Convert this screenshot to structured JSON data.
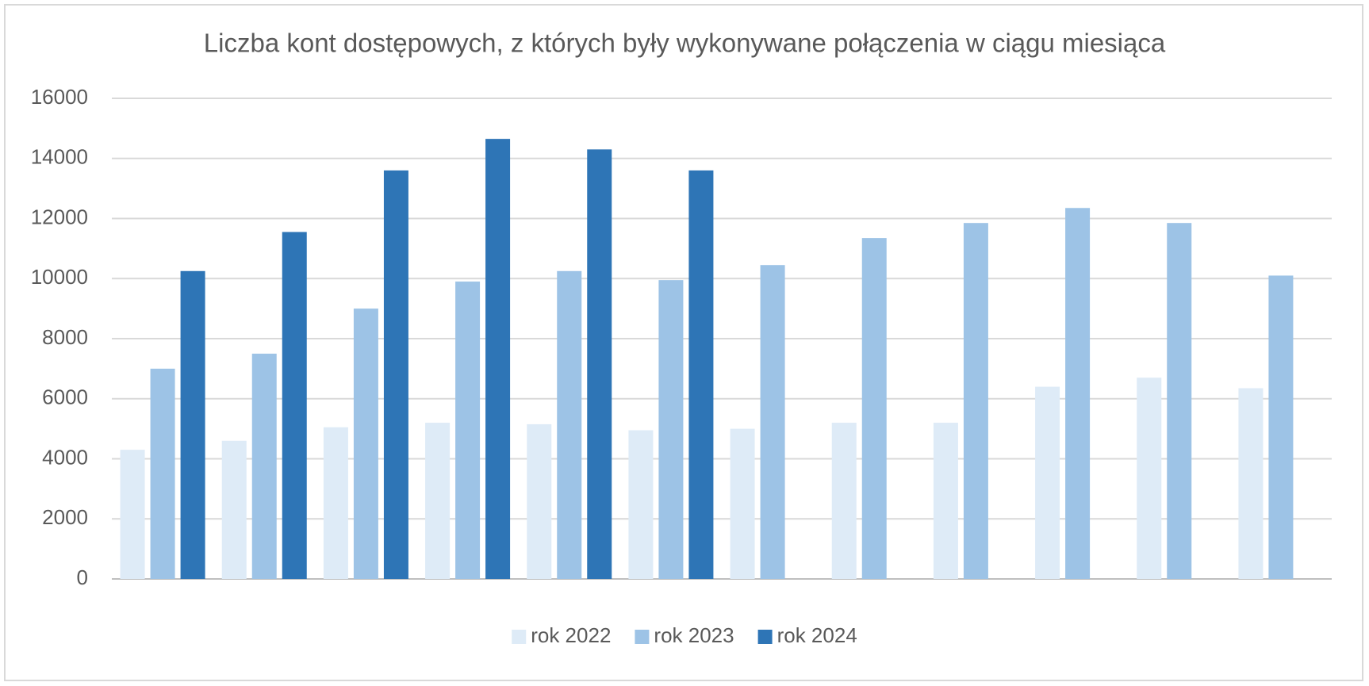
{
  "chart_data": {
    "type": "bar",
    "title": "Liczba kont dostępowych, z których były wykonywane połączenia w ciągu miesiąca",
    "categories": [
      null,
      null,
      null,
      null,
      null,
      null,
      null,
      null,
      null,
      null,
      null,
      null
    ],
    "series": [
      {
        "name": "rok 2022",
        "color": "#deebf7",
        "values": [
          4300,
          4600,
          5050,
          5200,
          5150,
          4950,
          5000,
          5200,
          5200,
          6400,
          6700,
          6350
        ]
      },
      {
        "name": "rok 2023",
        "color": "#9dc3e6",
        "values": [
          7000,
          7500,
          9000,
          9900,
          10250,
          9950,
          10450,
          11350,
          11850,
          12350,
          11850,
          10100
        ]
      },
      {
        "name": "rok 2024",
        "color": "#2e75b6",
        "values": [
          10250,
          11550,
          13600,
          14650,
          14300,
          13600,
          null,
          null,
          null,
          null,
          null,
          null
        ]
      }
    ],
    "ylim": [
      0,
      16000
    ],
    "yticks": [
      0,
      2000,
      4000,
      6000,
      8000,
      10000,
      12000,
      14000,
      16000
    ],
    "grid": true,
    "legend": "bottom"
  }
}
